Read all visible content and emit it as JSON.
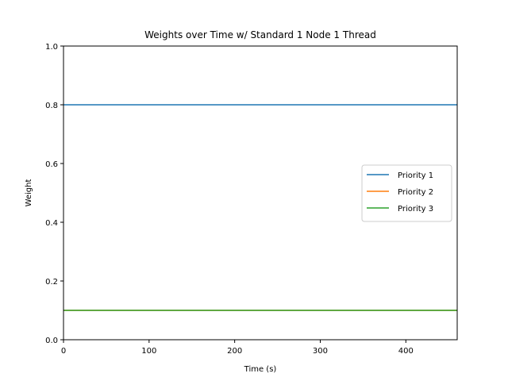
{
  "chart_data": {
    "type": "line",
    "title": "Weights over Time w/ Standard 1 Node 1 Thread",
    "xlabel": "Time (s)",
    "ylabel": "Weight",
    "xlim": [
      0,
      460
    ],
    "ylim": [
      0.0,
      1.0
    ],
    "x_ticks": [
      0,
      100,
      200,
      300,
      400
    ],
    "x_tick_labels": [
      "0",
      "100",
      "200",
      "300",
      "400"
    ],
    "y_ticks": [
      0.0,
      0.2,
      0.4,
      0.6,
      0.8,
      1.0
    ],
    "y_tick_labels": [
      "0.0",
      "0.2",
      "0.4",
      "0.6",
      "0.8",
      "1.0"
    ],
    "grid": false,
    "legend_position": "center-right",
    "series": [
      {
        "name": "Priority 1",
        "color": "#1f77b4",
        "x": [
          0,
          460
        ],
        "y": [
          0.8,
          0.8
        ]
      },
      {
        "name": "Priority 2",
        "color": "#ff7f0e",
        "x": [
          0,
          460
        ],
        "y": [
          0.1,
          0.1
        ]
      },
      {
        "name": "Priority 3",
        "color": "#2ca02c",
        "x": [
          0,
          460
        ],
        "y": [
          0.1,
          0.1
        ]
      }
    ]
  }
}
